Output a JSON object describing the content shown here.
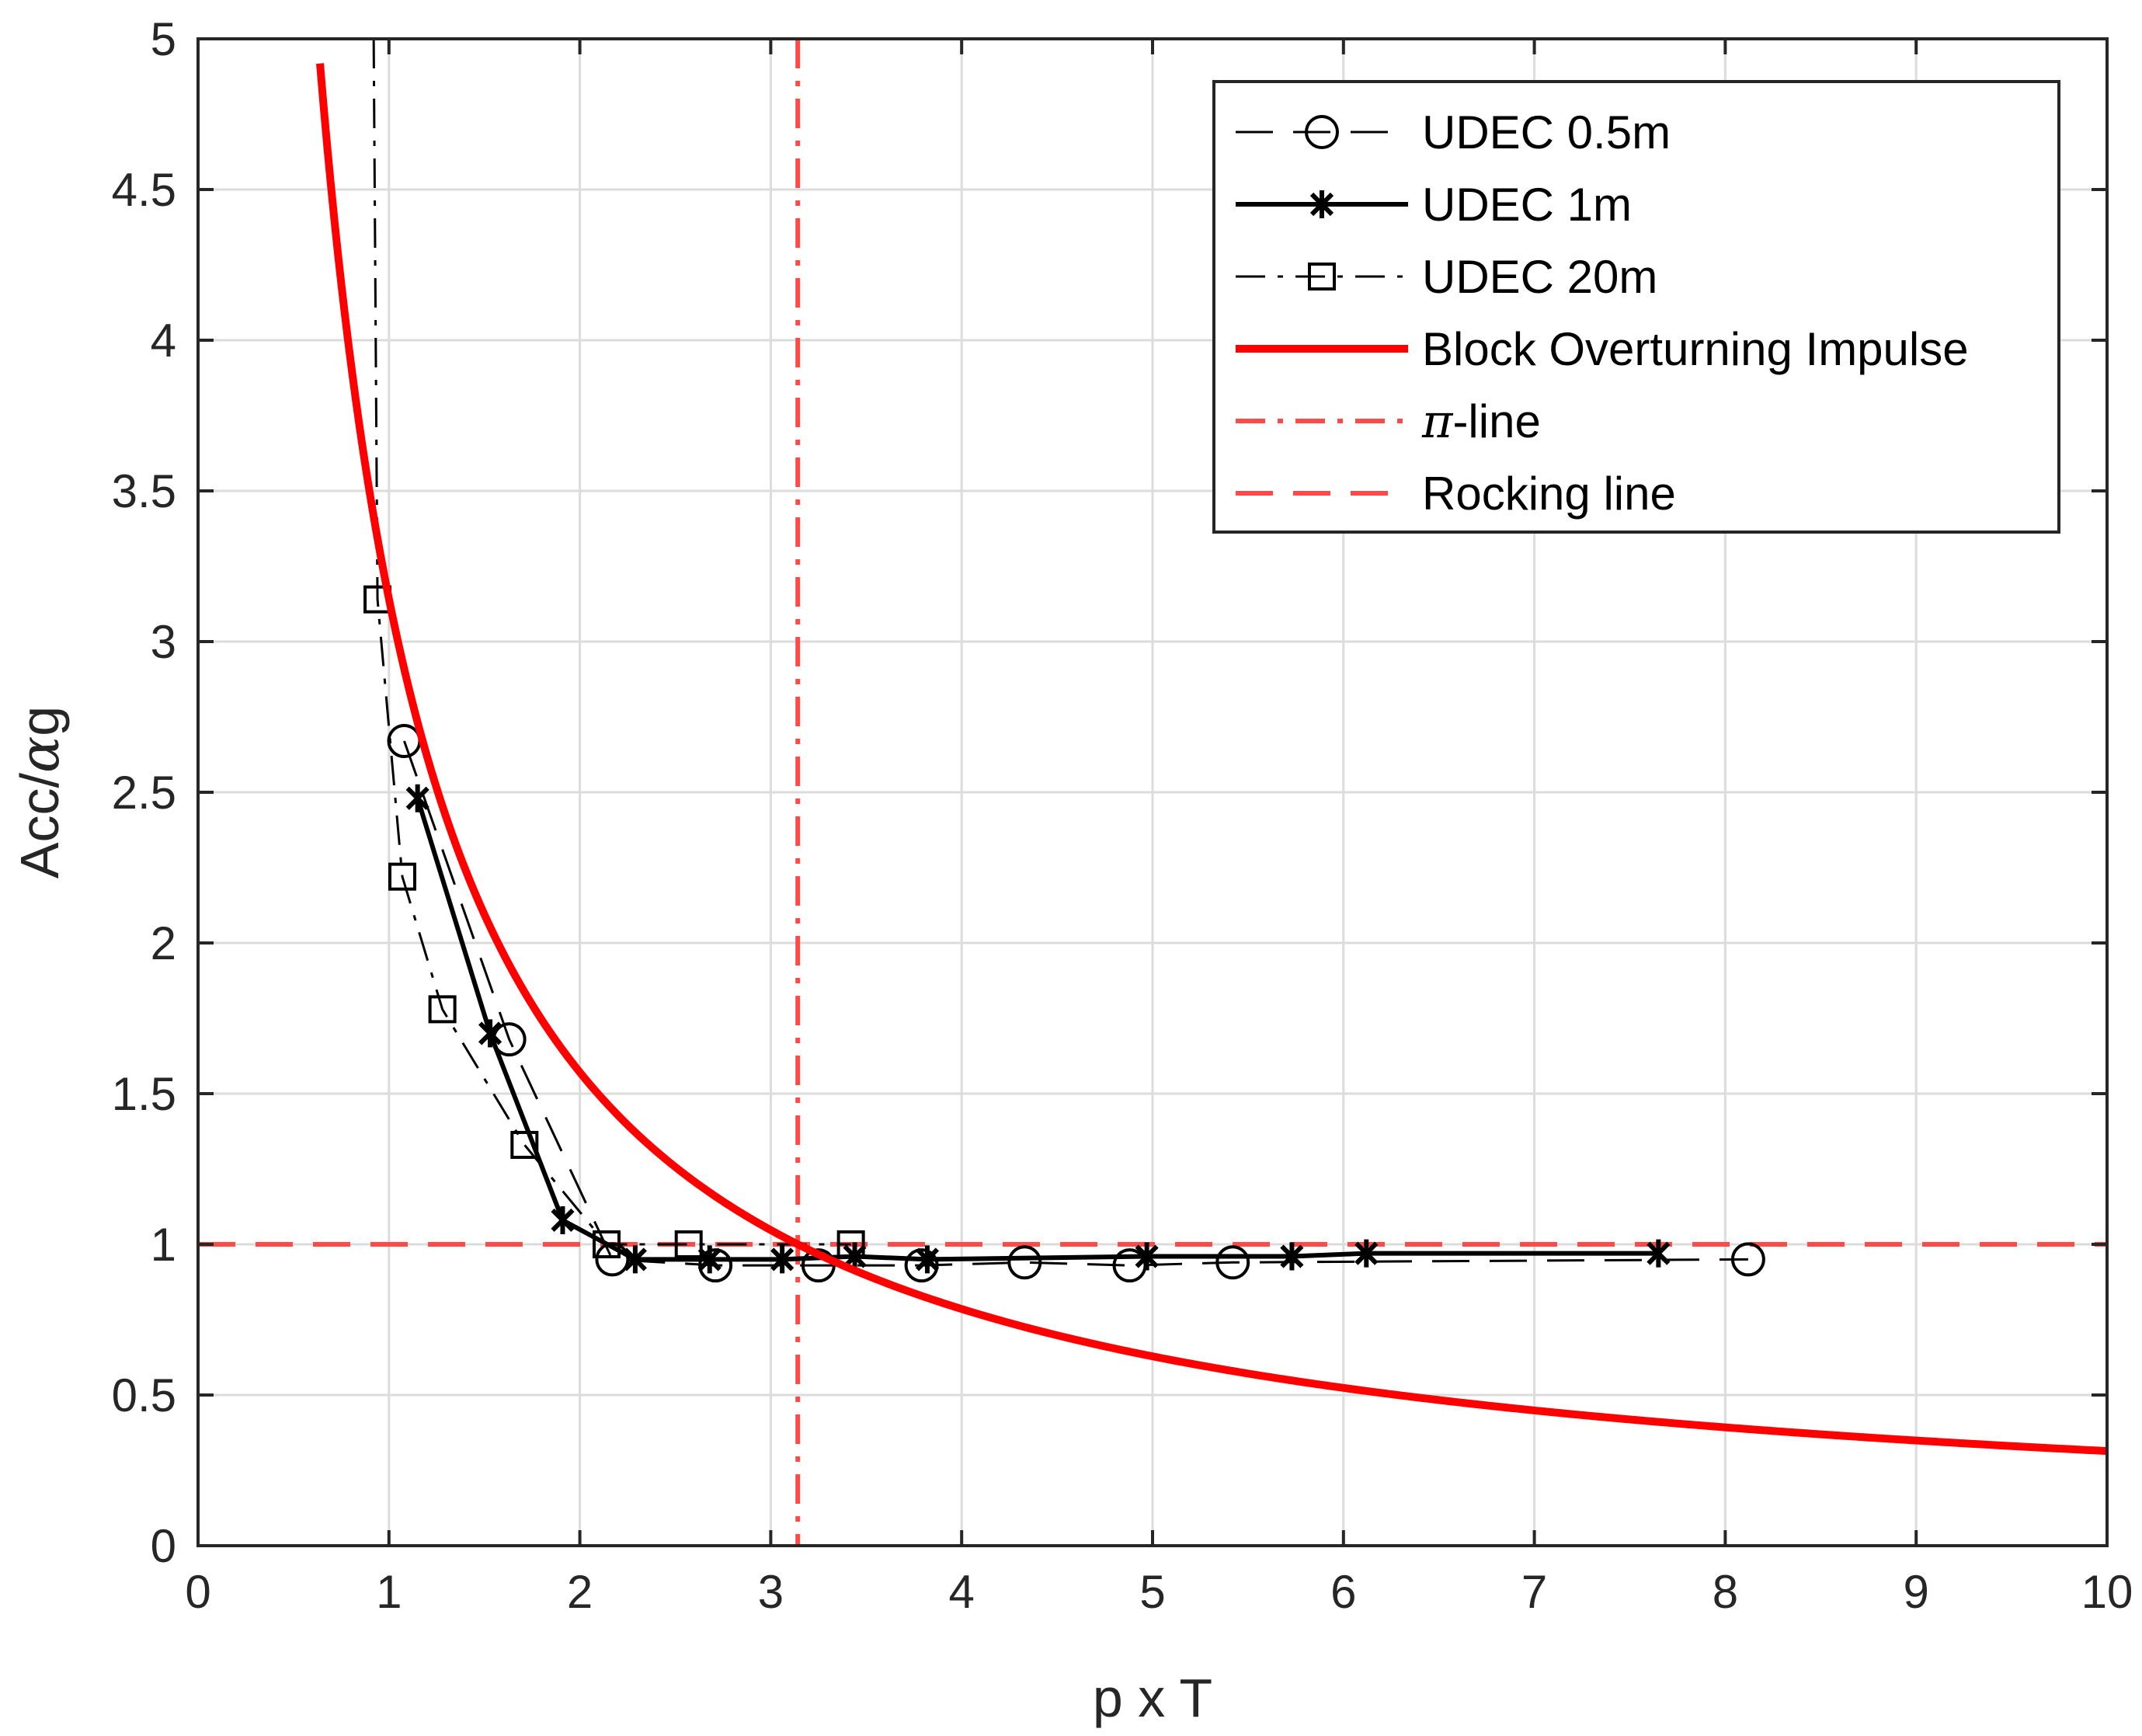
{
  "chart_data": {
    "type": "line",
    "title": "",
    "xlabel": "p x T",
    "ylabel_prefix": "Acc/",
    "ylabel_greek": "α",
    "ylabel_suffix": "g",
    "xlim": [
      0,
      10
    ],
    "ylim": [
      0,
      5
    ],
    "xticks": [
      0,
      1,
      2,
      3,
      4,
      5,
      6,
      7,
      8,
      9,
      10
    ],
    "xtick_labels": [
      "0",
      "1",
      "2",
      "3",
      "4",
      "5",
      "6",
      "7",
      "8",
      "9",
      "10"
    ],
    "yticks": [
      0,
      0.5,
      1,
      1.5,
      2,
      2.5,
      3,
      3.5,
      4,
      4.5,
      5
    ],
    "ytick_labels": [
      "0",
      "0.5",
      "1",
      "1.5",
      "2",
      "2.5",
      "3",
      "3.5",
      "4",
      "4.5",
      "5"
    ],
    "grid": true,
    "legend_position": "top-right",
    "series": [
      {
        "name": "UDEC 0.5m",
        "color": "#000000",
        "line_style": "dashed",
        "marker": "circle",
        "x": [
          1.08,
          1.63,
          2.17,
          2.71,
          3.25,
          3.79,
          4.33,
          4.88,
          5.42,
          8.12
        ],
        "y": [
          2.67,
          1.68,
          0.95,
          0.93,
          0.93,
          0.93,
          0.94,
          0.93,
          0.94,
          0.95
        ]
      },
      {
        "name": "UDEC 1m",
        "color": "#000000",
        "line_style": "solid",
        "marker": "asterisk",
        "x": [
          1.15,
          1.53,
          1.91,
          2.29,
          2.68,
          3.06,
          3.44,
          3.82,
          4.97,
          5.73,
          6.12,
          7.65
        ],
        "y": [
          2.48,
          1.7,
          1.08,
          0.95,
          0.95,
          0.95,
          0.96,
          0.95,
          0.96,
          0.96,
          0.97,
          0.97
        ]
      },
      {
        "name": "UDEC 20m",
        "color": "#000000",
        "line_style": "dashdot",
        "marker": "square",
        "x": [
          0.92,
          0.94,
          1.07,
          1.28,
          1.71,
          2.14,
          2.57,
          3.42
        ],
        "y": [
          5.0,
          3.14,
          2.22,
          1.78,
          1.33,
          1.0,
          1.0,
          1.0
        ]
      },
      {
        "name": "Block Overturning Impulse",
        "color": "#ff0000",
        "line_style": "solid",
        "marker": "none",
        "function": "pi/x",
        "x_range": [
          0.62,
          10
        ]
      },
      {
        "name": "π-line",
        "legend_prefix_greek": "π",
        "legend_suffix": "-line",
        "color": "#ff4a4a",
        "line_style": "dashdot",
        "marker": "none",
        "vertical_at_x": 3.1416
      },
      {
        "name": "Rocking line",
        "color": "#ff4a4a",
        "line_style": "dashed",
        "marker": "none",
        "horizontal_at_y": 1
      }
    ]
  }
}
